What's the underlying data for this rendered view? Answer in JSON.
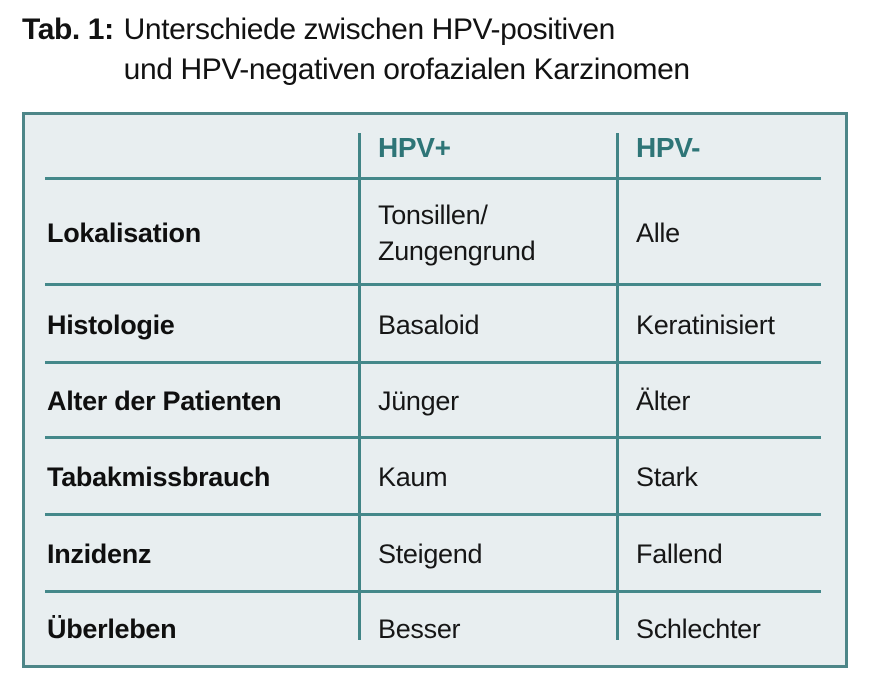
{
  "title": {
    "prefix": "Tab. 1:",
    "line1": "Unterschiede zwischen HPV-positiven",
    "line2": "und HPV-negativen orofazialen Karzinomen"
  },
  "table": {
    "col_headers": {
      "hpv_positive": "HPV+",
      "hpv_negative": "HPV-"
    },
    "rows": [
      {
        "label": "Lokalisation",
        "hpv_pos": "Tonsillen/",
        "hpv_pos_line2": "Zungengrund",
        "hpv_neg": "Alle"
      },
      {
        "label": "Histologie",
        "hpv_pos": "Basaloid",
        "hpv_neg": "Keratinisiert"
      },
      {
        "label": "Alter der Patienten",
        "hpv_pos": "Jünger",
        "hpv_neg": "Älter"
      },
      {
        "label": "Tabakmissbrauch",
        "hpv_pos": "Kaum",
        "hpv_neg": "Stark"
      },
      {
        "label": "Inzidenz",
        "hpv_pos": "Steigend",
        "hpv_neg": "Fallend"
      },
      {
        "label": "Überleben",
        "hpv_pos": "Besser",
        "hpv_neg": "Schlechter"
      }
    ],
    "colors": {
      "accent_teal_text": "#2e7577",
      "grid_line": "#44888a",
      "border": "#4d8688",
      "table_background": "#e8eef0",
      "body_text": "#161616"
    }
  }
}
